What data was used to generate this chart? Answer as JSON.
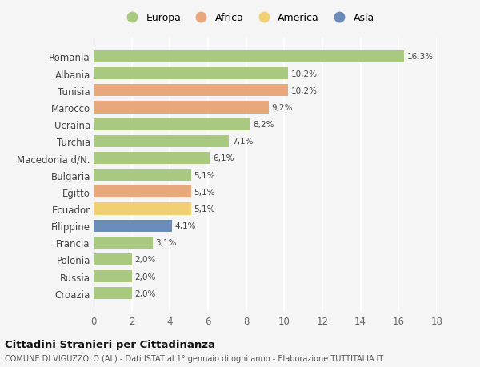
{
  "categories": [
    "Romania",
    "Albania",
    "Tunisia",
    "Marocco",
    "Ucraina",
    "Turchia",
    "Macedonia d/N.",
    "Bulgaria",
    "Egitto",
    "Ecuador",
    "Filippine",
    "Francia",
    "Polonia",
    "Russia",
    "Croazia"
  ],
  "values": [
    16.3,
    10.2,
    10.2,
    9.2,
    8.2,
    7.1,
    6.1,
    5.1,
    5.1,
    5.1,
    4.1,
    3.1,
    2.0,
    2.0,
    2.0
  ],
  "labels": [
    "16,3%",
    "10,2%",
    "10,2%",
    "9,2%",
    "8,2%",
    "7,1%",
    "6,1%",
    "5,1%",
    "5,1%",
    "5,1%",
    "4,1%",
    "3,1%",
    "2,0%",
    "2,0%",
    "2,0%"
  ],
  "colors": [
    "#a8c97f",
    "#a8c97f",
    "#e8a87c",
    "#e8a87c",
    "#a8c97f",
    "#a8c97f",
    "#a8c97f",
    "#a8c97f",
    "#e8a87c",
    "#f0d070",
    "#6b8cba",
    "#a8c97f",
    "#a8c97f",
    "#a8c97f",
    "#a8c97f"
  ],
  "legend_labels": [
    "Europa",
    "Africa",
    "America",
    "Asia"
  ],
  "legend_colors": [
    "#a8c97f",
    "#e8a87c",
    "#f0d070",
    "#6b8cba"
  ],
  "xlim": [
    0,
    18
  ],
  "xticks": [
    0,
    2,
    4,
    6,
    8,
    10,
    12,
    14,
    16,
    18
  ],
  "title": "Cittadini Stranieri per Cittadinanza",
  "subtitle": "COMUNE DI VIGUZZOLO (AL) - Dati ISTAT al 1° gennaio di ogni anno - Elaborazione TUTTITALIA.IT",
  "background_color": "#f5f5f5",
  "grid_color": "#ffffff",
  "bar_height": 0.72
}
